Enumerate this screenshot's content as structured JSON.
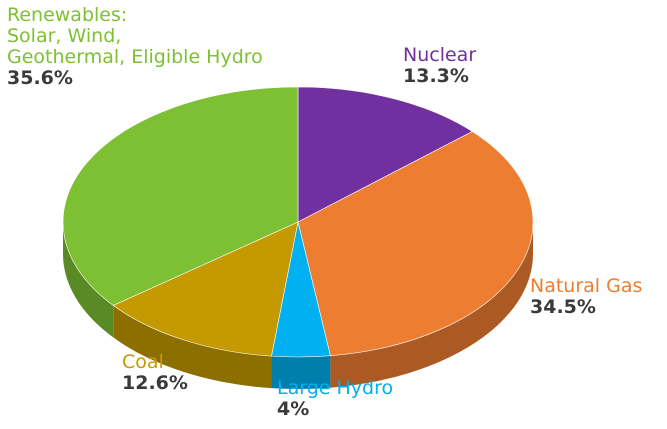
{
  "chart_data": {
    "type": "pie3d",
    "categories": [
      "Nuclear",
      "Natural Gas",
      "Large Hydro",
      "Coal",
      "Renewables:\nSolar, Wind,\nGeothermal, Eligible Hydro"
    ],
    "values": [
      13.3,
      34.5,
      4,
      12.6,
      35.6
    ],
    "value_labels": [
      "13.3%",
      "34.5%",
      "4%",
      "12.6%",
      "35.6%"
    ],
    "colors": [
      "#7030a0",
      "#ed7d31",
      "#00b0f0",
      "#c49a00",
      "#7dc033"
    ]
  }
}
